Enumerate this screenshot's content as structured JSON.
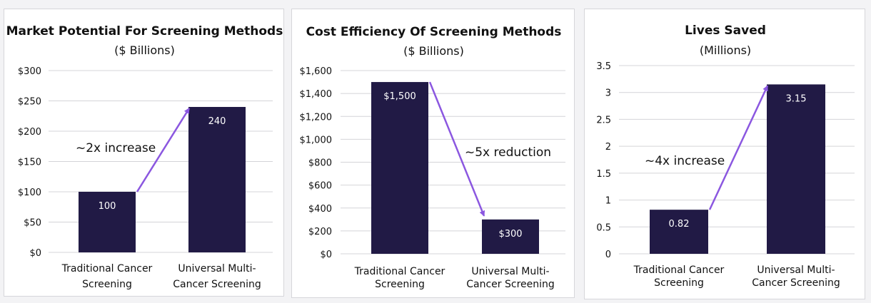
{
  "colors": {
    "bar": "#211a45",
    "arrow": "#8b57e0",
    "grid": "#d4d4d8"
  },
  "chart_data": [
    {
      "type": "bar",
      "title": "Market Potential For Screening Methods",
      "subtitle": "($ Billions)",
      "categories": [
        [
          "Traditional Cancer",
          "Screening"
        ],
        [
          "Universal Multi-",
          "Cancer Screening"
        ]
      ],
      "values": [
        100,
        240
      ],
      "value_labels": [
        "100",
        "240"
      ],
      "ylim": [
        0,
        300
      ],
      "yticks": [
        0,
        50,
        100,
        150,
        200,
        250,
        300
      ],
      "ytick_labels": [
        "$0",
        "$50",
        "$100",
        "$150",
        "$200",
        "$250",
        "$300"
      ],
      "annotation": "~2x increase",
      "grid": true
    },
    {
      "type": "bar",
      "title": "Cost Efficiency Of Screening Methods",
      "subtitle": "($ Billions)",
      "categories": [
        [
          "Traditional Cancer",
          "Screening"
        ],
        [
          "Universal Multi-",
          "Cancer Screening"
        ]
      ],
      "values": [
        1500,
        300
      ],
      "value_labels": [
        "$1,500",
        "$300"
      ],
      "ylim": [
        0,
        1600
      ],
      "yticks": [
        0,
        200,
        400,
        600,
        800,
        1000,
        1200,
        1400,
        1600
      ],
      "ytick_labels": [
        "$0",
        "$200",
        "$400",
        "$600",
        "$800",
        "$1,000",
        "$1,200",
        "$1,400",
        "$1,600"
      ],
      "annotation": "~5x reduction",
      "grid": true
    },
    {
      "type": "bar",
      "title": "Lives Saved",
      "subtitle": "(Millions)",
      "categories": [
        [
          "Traditional Cancer",
          "Screening"
        ],
        [
          "Universal Multi-",
          "Cancer Screening"
        ]
      ],
      "values": [
        0.82,
        3.15
      ],
      "value_labels": [
        "0.82",
        "3.15"
      ],
      "ylim": [
        0,
        3.5
      ],
      "yticks": [
        0,
        0.5,
        1,
        1.5,
        2,
        2.5,
        3,
        3.5
      ],
      "ytick_labels": [
        "0",
        "0.5",
        "1",
        "1.5",
        "2",
        "2.5",
        "3",
        "3.5"
      ],
      "annotation": "~4x increase",
      "grid": true
    }
  ]
}
